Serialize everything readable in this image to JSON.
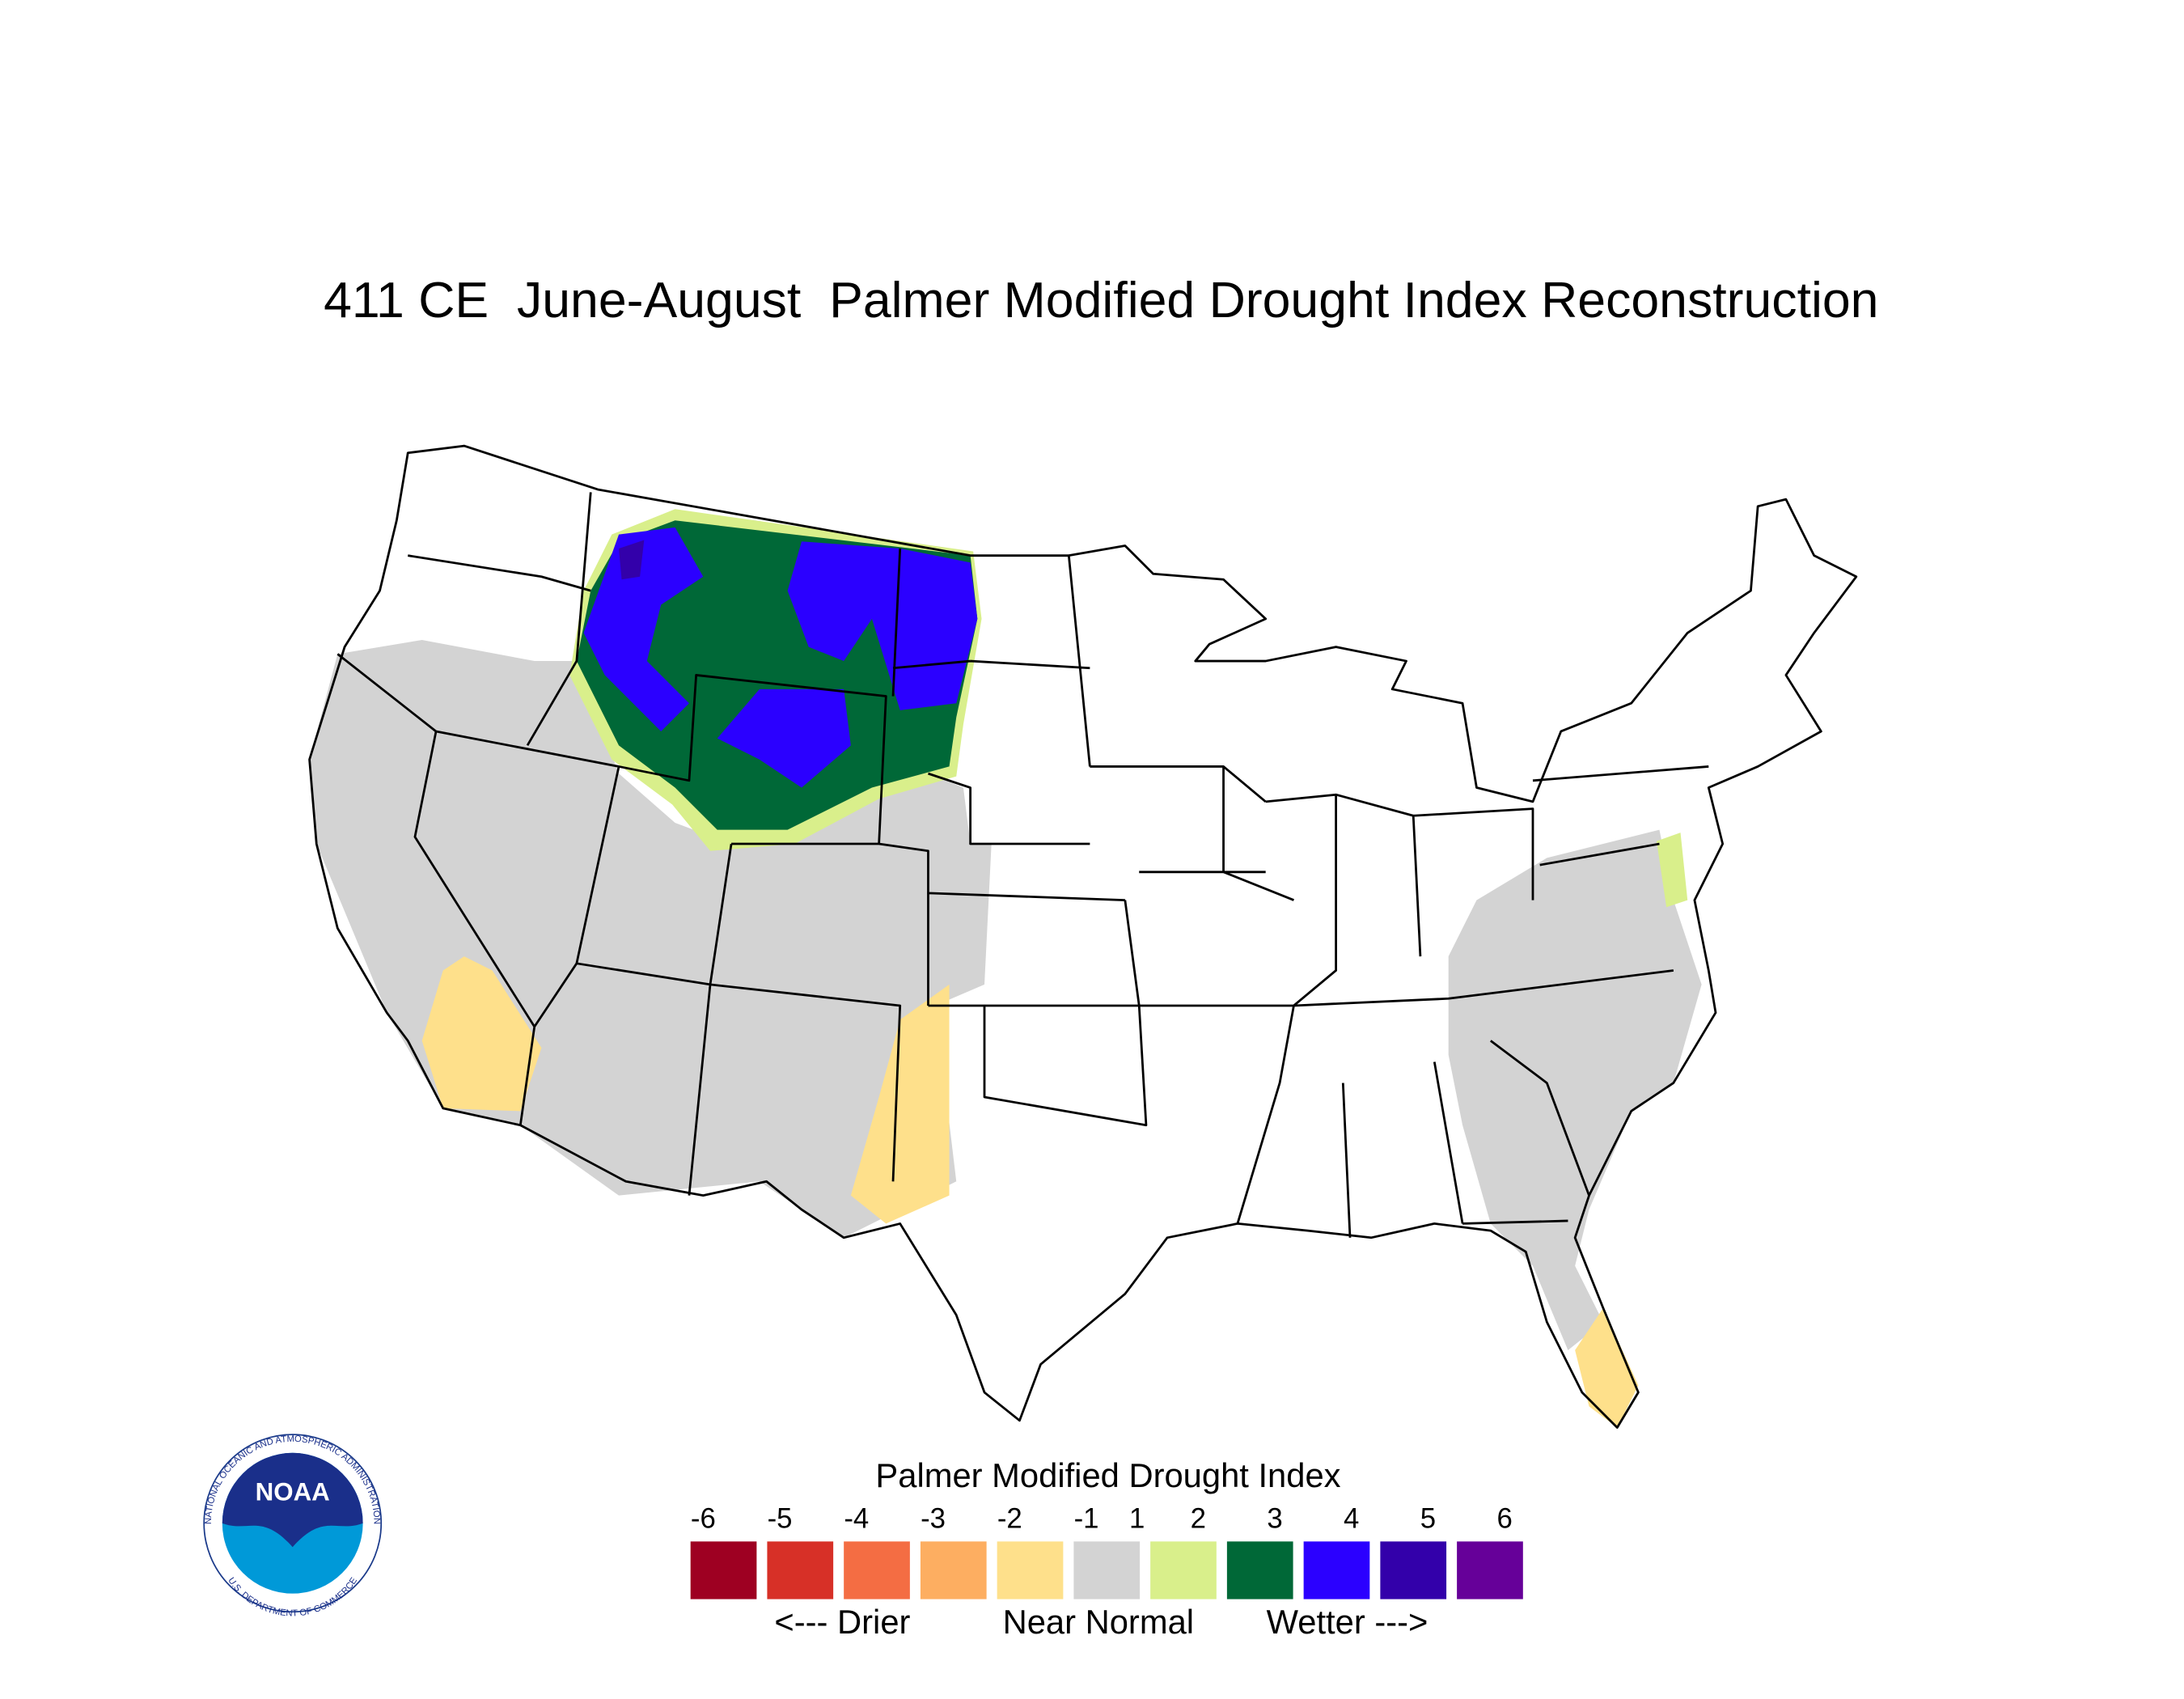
{
  "header": {
    "title": "411 CE  June-August  Palmer Modified Drought Index Reconstruction"
  },
  "legend": {
    "title": "Palmer Modified Drought Index",
    "ticks": [
      -6,
      -5,
      -4,
      -3,
      -2,
      -1,
      1,
      2,
      3,
      4,
      5,
      6
    ],
    "colors": [
      "#9e0022",
      "#d73027",
      "#f46d43",
      "#fdae61",
      "#fee08b",
      "#d3d3d3",
      "#d9ef8b",
      "#006837",
      "#2b00ff",
      "#3300aa",
      "#660099"
    ],
    "labels": [
      "<--- Drier",
      "Near Normal",
      "Wetter --->"
    ]
  },
  "logo": {
    "text": "NOAA",
    "ring_top": "NATIONAL OCEANIC AND ATMOSPHERIC ADMINISTRATION",
    "ring_bottom": "U.S. DEPARTMENT OF COMMERCE"
  }
}
